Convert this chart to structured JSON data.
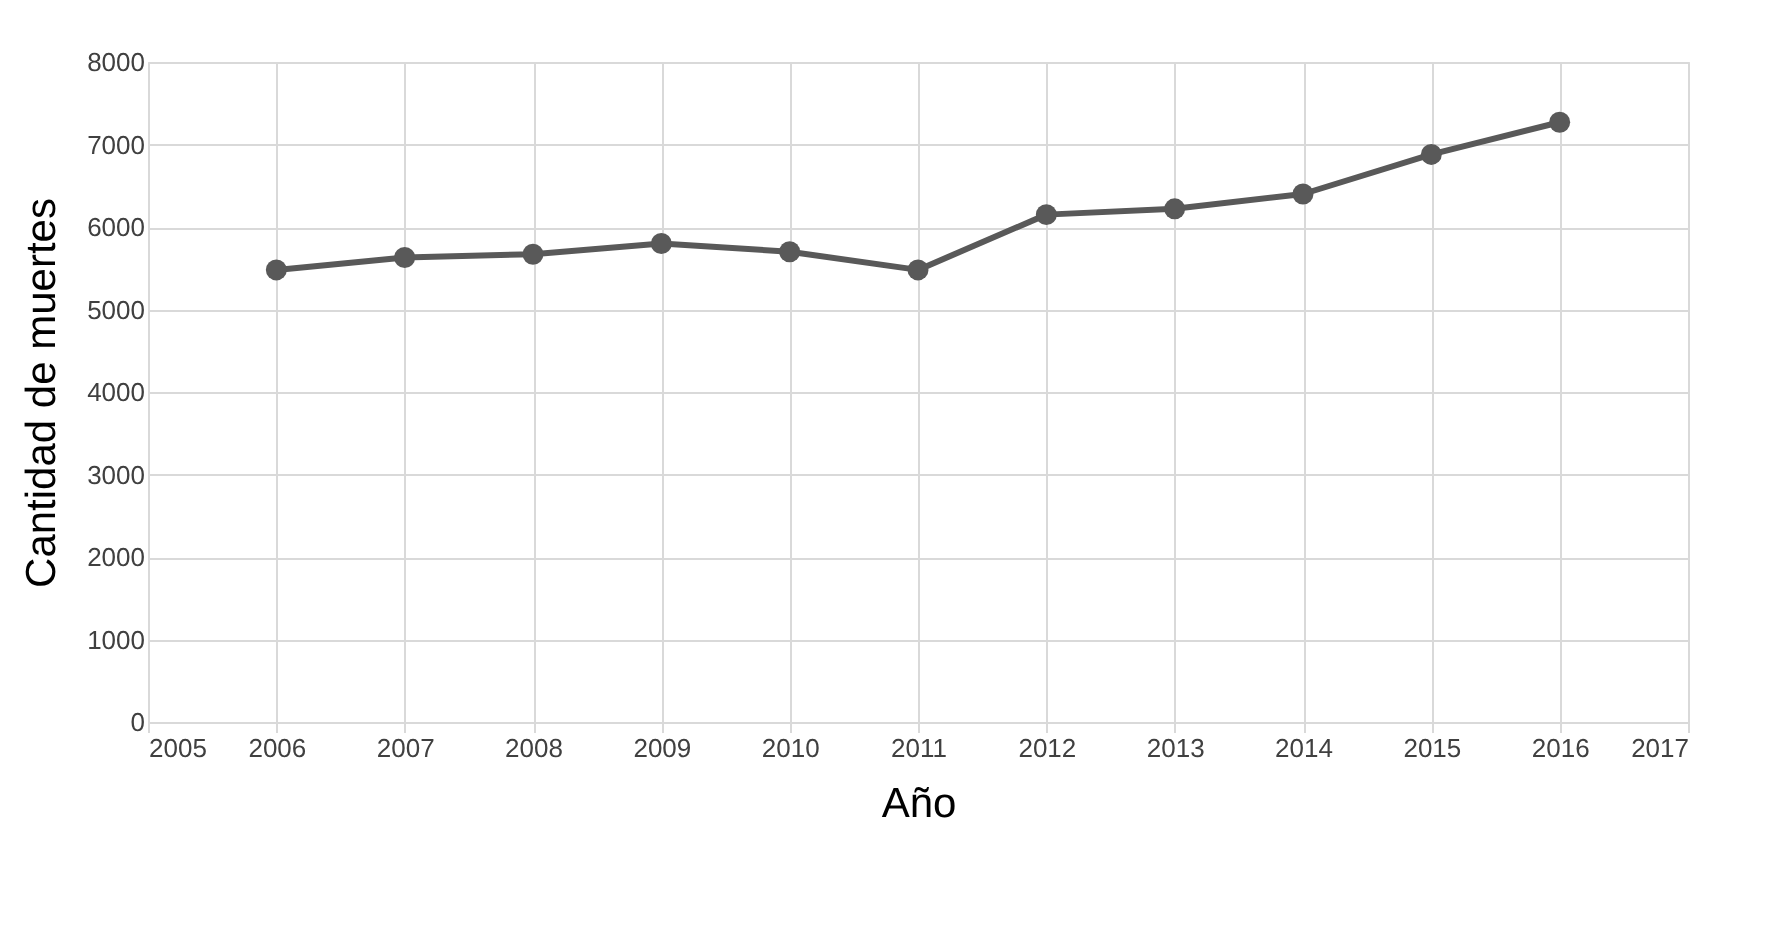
{
  "chart_data": {
    "type": "line",
    "xlabel": "Año",
    "ylabel": "Cantidad de muertes",
    "x": [
      2006,
      2007,
      2008,
      2009,
      2010,
      2011,
      2012,
      2013,
      2014,
      2015,
      2016
    ],
    "series": [
      {
        "color": "#595959",
        "values": [
          5480,
          5630,
          5670,
          5800,
          5700,
          5480,
          6150,
          6220,
          6400,
          6880,
          7270
        ]
      }
    ],
    "xlim": [
      2005,
      2017
    ],
    "xticks": [
      2005,
      2006,
      2007,
      2008,
      2009,
      2010,
      2011,
      2012,
      2013,
      2014,
      2015,
      2016,
      2017
    ],
    "ylim": [
      0,
      8000
    ],
    "yticks": [
      0,
      1000,
      2000,
      3000,
      4000,
      5000,
      6000,
      7000,
      8000
    ],
    "grid": true,
    "marker": "circle",
    "line_style": "solid"
  }
}
